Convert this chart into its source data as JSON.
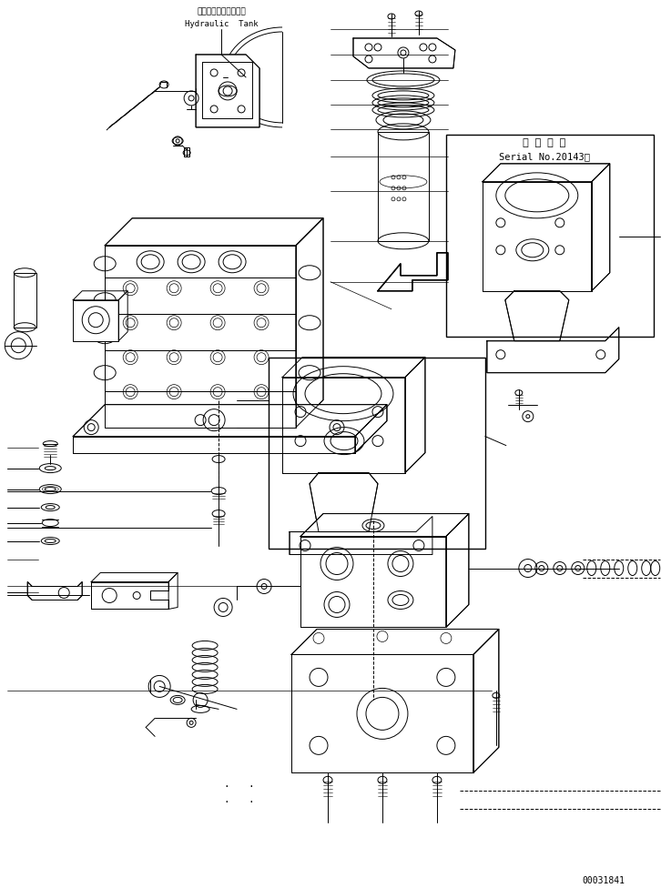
{
  "bg_color": "#ffffff",
  "lc": "#000000",
  "lw": 0.7,
  "title_jp": "ハイドロリックタンク",
  "title_en": "Hydraulic  Tank",
  "serial_jp": "適 用 号 機",
  "serial_no": "Serial No.20143～",
  "doc_number": "00031841",
  "fig_width": 7.26,
  "fig_height": 9.76
}
